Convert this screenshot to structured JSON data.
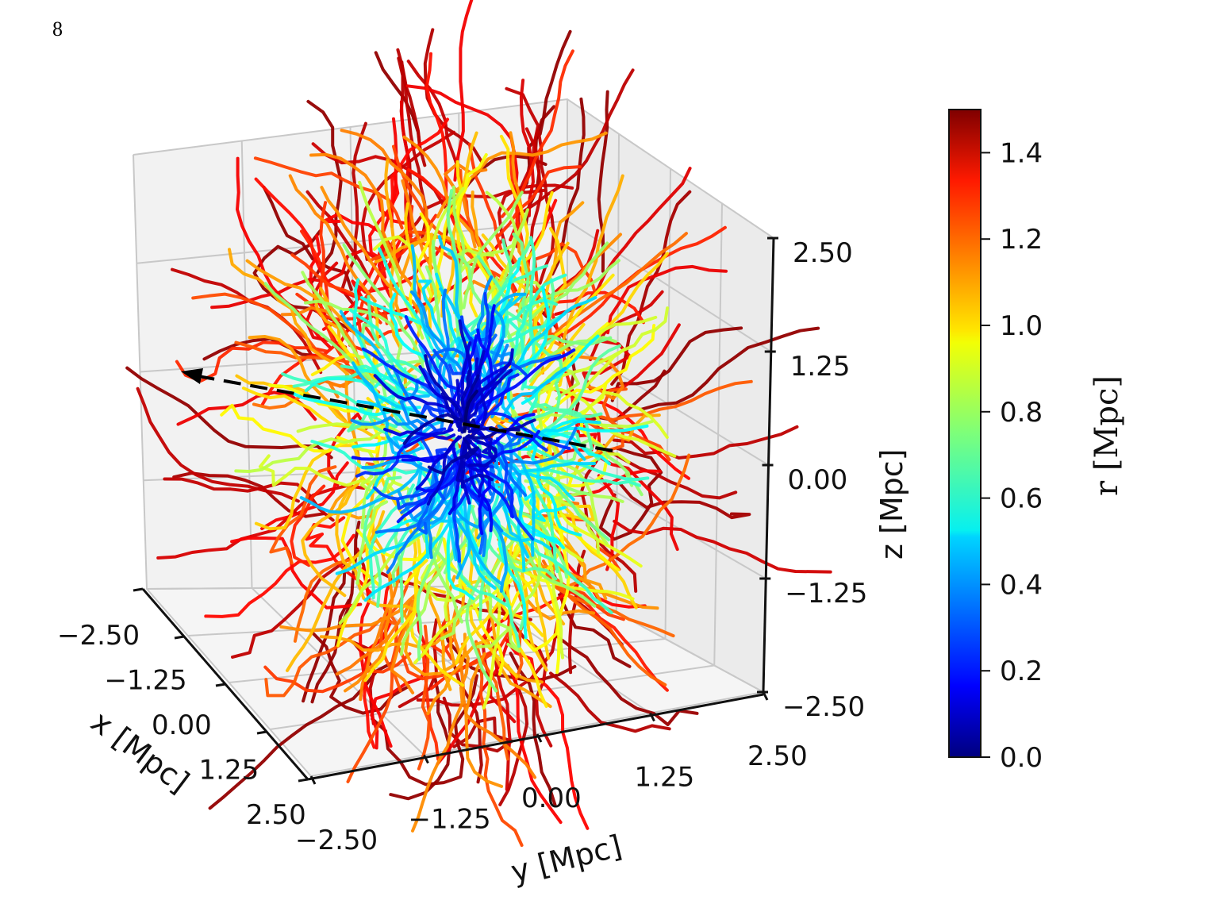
{
  "page": {
    "number": "8"
  },
  "chart_data": {
    "type": "3d-line",
    "description_of_content": "",
    "axes": {
      "x": {
        "label": "x [Mpc]",
        "ticks": [
          "−2.50",
          "−1.25",
          "0.00",
          "1.25",
          "2.50"
        ],
        "tick_values": [
          -2.5,
          -1.25,
          0,
          1.25,
          2.5
        ],
        "range": [
          -2.5,
          2.5
        ]
      },
      "y": {
        "label": "y [Mpc]",
        "ticks": [
          "−2.50",
          "−1.25",
          "0.00",
          "1.25",
          "2.50"
        ],
        "tick_values": [
          -2.5,
          -1.25,
          0,
          1.25,
          2.5
        ],
        "range": [
          -2.5,
          2.5
        ]
      },
      "z": {
        "label": "z [Mpc]",
        "ticks": [
          "−2.50",
          "−1.25",
          "0.00",
          "1.25",
          "2.50"
        ],
        "tick_values": [
          -2.5,
          -1.25,
          0,
          1.25,
          2.5
        ],
        "range": [
          -2.5,
          2.5
        ]
      }
    },
    "colorbar": {
      "label": "r [Mpc]",
      "colormap": "jet",
      "range": [
        0,
        1.5
      ],
      "ticks": [
        "0.0",
        "0.2",
        "0.4",
        "0.6",
        "0.8",
        "1.0",
        "1.2",
        "1.4"
      ],
      "tick_values": [
        0,
        0.2,
        0.4,
        0.6,
        0.8,
        1.0,
        1.2,
        1.4
      ]
    },
    "annotation": {
      "type": "dashed-arrow",
      "color": "#000000"
    },
    "grid": true,
    "background": "#f2f2f2"
  }
}
